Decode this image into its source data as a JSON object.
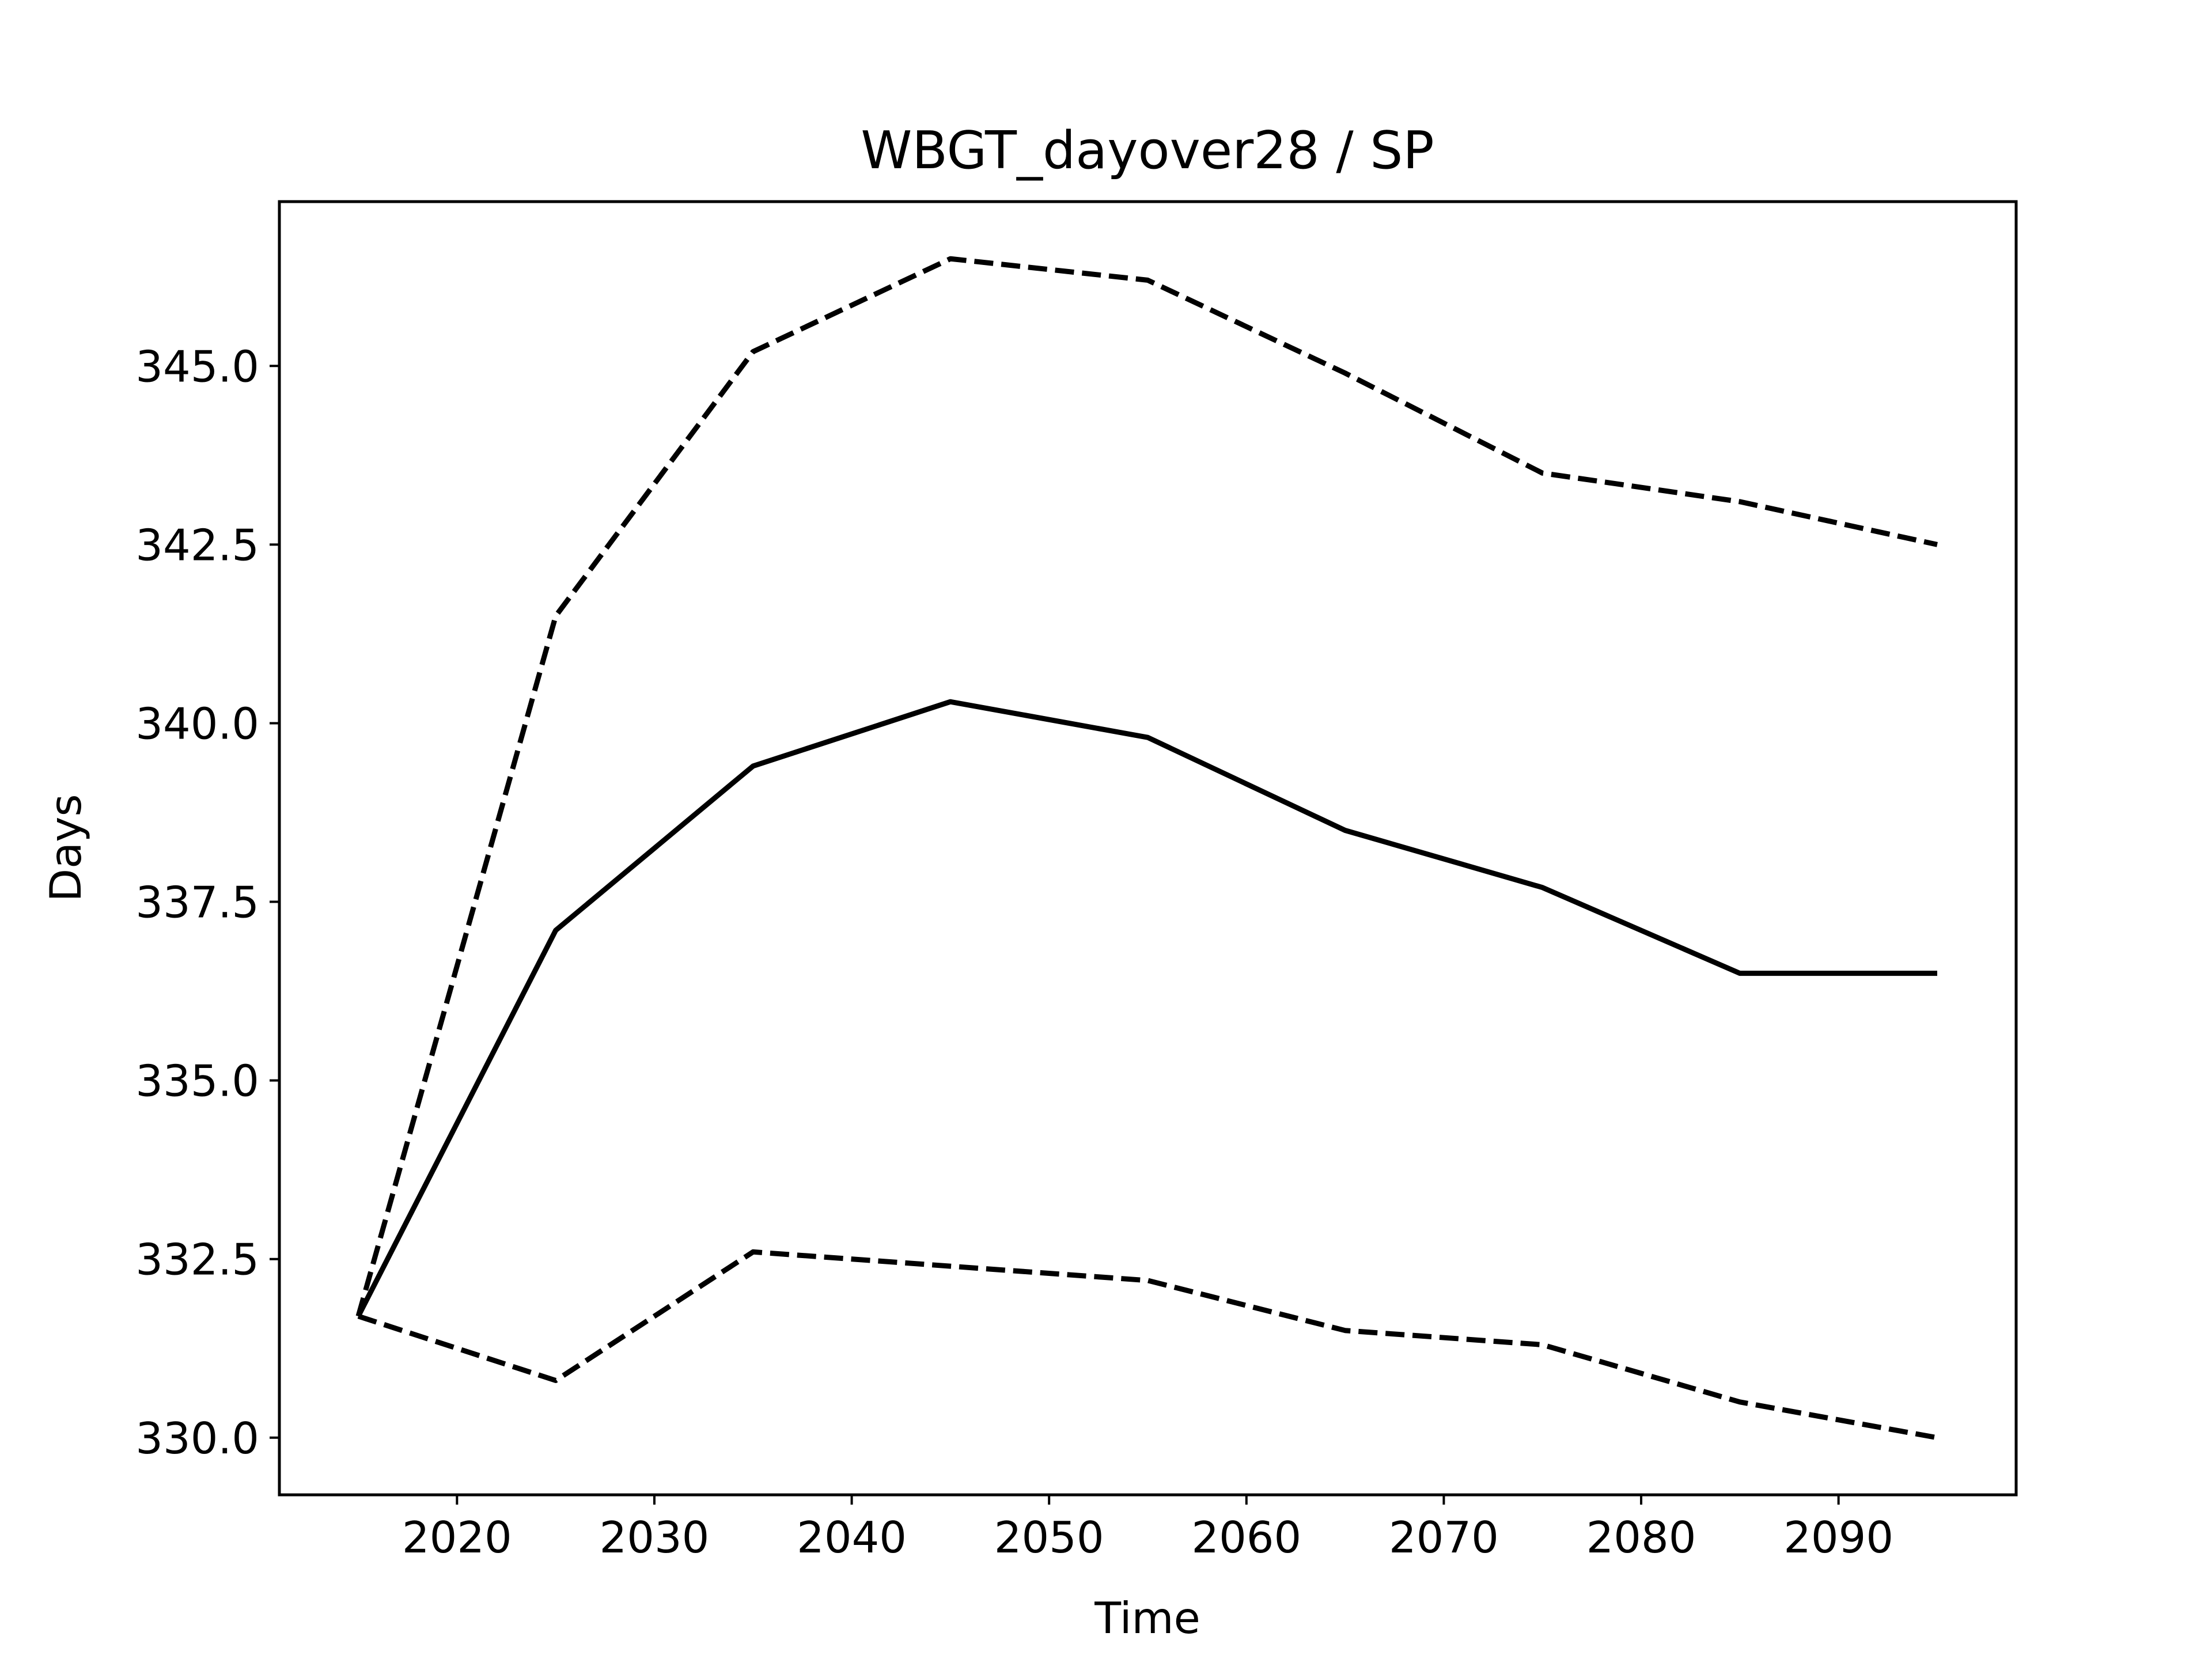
{
  "chart_data": {
    "type": "line",
    "title": "WBGT_dayover28 / SP",
    "xlabel": "Time",
    "ylabel": "Days",
    "xlim": [
      2011,
      2099
    ],
    "ylim": [
      329.2,
      347.3
    ],
    "xticks": [
      2020,
      2030,
      2040,
      2050,
      2060,
      2070,
      2080,
      2090
    ],
    "yticks": [
      330.0,
      332.5,
      335.0,
      337.5,
      340.0,
      342.5,
      345.0
    ],
    "xtick_labels": [
      "2020",
      "2030",
      "2040",
      "2050",
      "2060",
      "2070",
      "2080",
      "2090"
    ],
    "ytick_labels": [
      "330.0",
      "332.5",
      "335.0",
      "337.5",
      "340.0",
      "342.5",
      "345.0"
    ],
    "grid": false,
    "x": [
      2015,
      2025,
      2035,
      2045,
      2055,
      2065,
      2075,
      2085,
      2095
    ],
    "series": [
      {
        "style": "dashed",
        "color": "#000000",
        "values": [
          331.7,
          341.5,
          345.2,
          346.5,
          346.2,
          344.9,
          343.5,
          343.1,
          342.5
        ]
      },
      {
        "style": "solid",
        "color": "#000000",
        "values": [
          331.7,
          337.1,
          339.4,
          340.3,
          339.8,
          338.5,
          337.7,
          336.5,
          336.5
        ]
      },
      {
        "style": "dashed",
        "color": "#000000",
        "values": [
          331.7,
          330.8,
          332.6,
          332.4,
          332.2,
          331.5,
          331.3,
          330.5,
          330.0
        ]
      }
    ]
  }
}
